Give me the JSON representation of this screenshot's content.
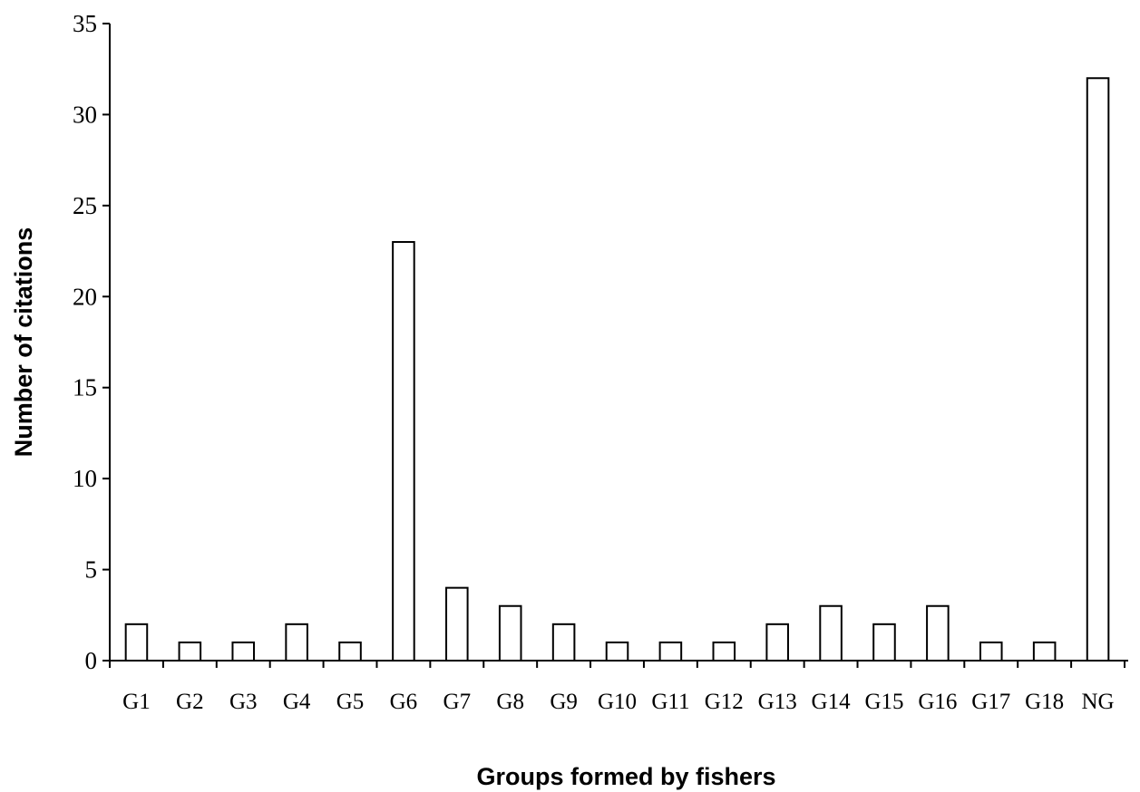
{
  "chart_data": {
    "type": "bar",
    "title": "",
    "xlabel": "Groups formed by fishers",
    "ylabel": "Number of citations",
    "ylim": [
      0,
      35
    ],
    "yticks": [
      0,
      5,
      10,
      15,
      20,
      25,
      30,
      35
    ],
    "grid": false,
    "legend": "none",
    "bar_fill": "#ffffff",
    "bar_stroke": "#000000",
    "categories": [
      "G1",
      "G2",
      "G3",
      "G4",
      "G5",
      "G6",
      "G7",
      "G8",
      "G9",
      "G10",
      "G11",
      "G12",
      "G13",
      "G14",
      "G15",
      "G16",
      "G17",
      "G18",
      "NG"
    ],
    "values": [
      2,
      1,
      1,
      2,
      1,
      23,
      4,
      3,
      2,
      1,
      1,
      1,
      2,
      3,
      2,
      3,
      1,
      1,
      32
    ]
  }
}
